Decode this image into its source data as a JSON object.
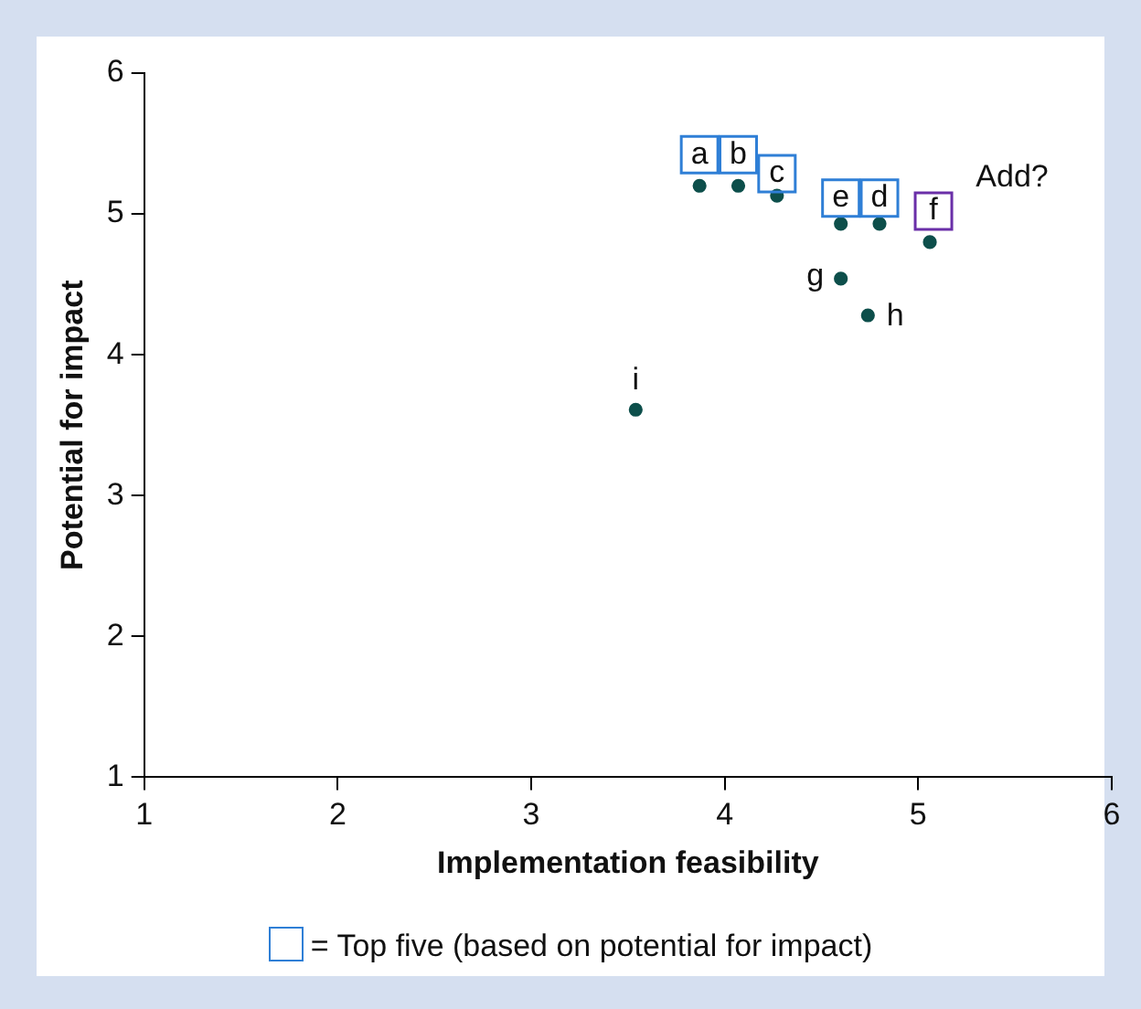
{
  "chart_data": {
    "type": "scatter",
    "xlabel": "Implementation feasibility",
    "ylabel": "Potential for impact",
    "x": [
      3.87,
      4.07,
      4.27,
      4.6,
      4.8,
      5.06,
      4.6,
      4.74,
      3.54
    ],
    "series": [
      {
        "color": "#0d4f4b",
        "values": [
          5.2,
          5.2,
          5.13,
          4.93,
          4.93,
          4.8,
          4.54,
          4.28,
          3.61
        ]
      }
    ],
    "xlim": [
      1,
      6
    ],
    "xticks": [
      1,
      2,
      3,
      4,
      5,
      6
    ],
    "ylim": [
      1,
      6
    ],
    "yticks": [
      1,
      2,
      3,
      4,
      5,
      6
    ],
    "grid": false,
    "legend": false,
    "marker": "circle",
    "annotations": [
      {
        "text": "a",
        "x": 3.87,
        "y": 5.2
      },
      {
        "text": "b",
        "x": 4.07,
        "y": 5.2
      },
      {
        "text": "c",
        "x": 4.27,
        "y": 5.13
      },
      {
        "text": "e",
        "x": 4.6,
        "y": 4.93
      },
      {
        "text": "d",
        "x": 4.8,
        "y": 4.93
      },
      {
        "text": "f",
        "x": 5.06,
        "y": 4.8
      },
      {
        "text": "g",
        "x": 4.6,
        "y": 4.54
      },
      {
        "text": "h",
        "x": 4.74,
        "y": 4.28
      },
      {
        "text": "i",
        "x": 3.54,
        "y": 3.61
      },
      {
        "text": "Add?",
        "x": 5.06,
        "y": 4.8
      },
      "= Top five (based on potential for impact)"
    ]
  }
}
